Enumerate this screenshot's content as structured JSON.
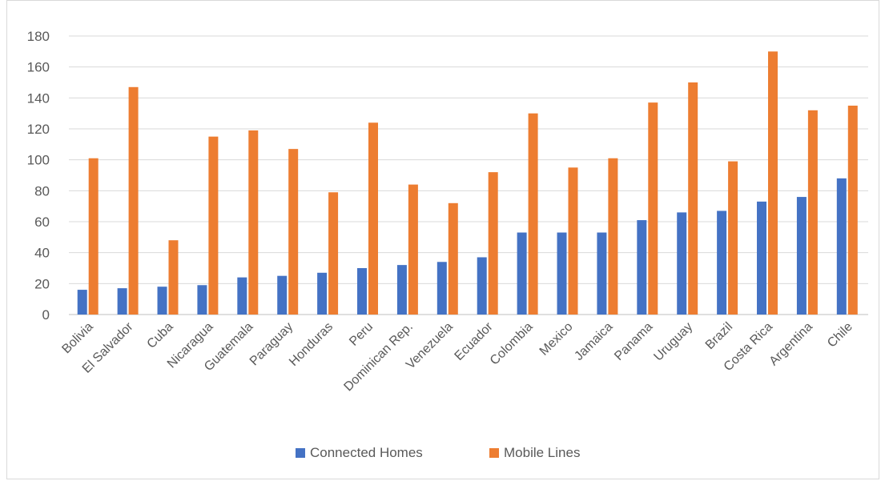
{
  "chart_data": {
    "type": "bar",
    "categories": [
      "Bolivia",
      "El Salvador",
      "Cuba",
      "Nicaragua",
      "Guatemala",
      "Paraguay",
      "Honduras",
      "Peru",
      "Dominican Rep.",
      "Venezuela",
      "Ecuador",
      "Colombia",
      "Mexico",
      "Jamaica",
      "Panama",
      "Uruguay",
      "Brazil",
      "Costa Rica",
      "Argentina",
      "Chile"
    ],
    "series": [
      {
        "name": "Connected Homes",
        "color": "#4472c4",
        "values": [
          16,
          17,
          18,
          19,
          24,
          25,
          27,
          30,
          32,
          34,
          37,
          53,
          53,
          53,
          61,
          66,
          67,
          73,
          76,
          88
        ]
      },
      {
        "name": "Mobile Lines",
        "color": "#ed7d31",
        "values": [
          101,
          147,
          48,
          115,
          119,
          107,
          79,
          124,
          84,
          72,
          92,
          130,
          95,
          101,
          137,
          150,
          99,
          170,
          132,
          135
        ]
      }
    ],
    "yticks": [
      0,
      20,
      40,
      60,
      80,
      100,
      120,
      140,
      160,
      180
    ],
    "ylim": [
      0,
      180
    ],
    "grid": true,
    "legend_position": "bottom"
  }
}
